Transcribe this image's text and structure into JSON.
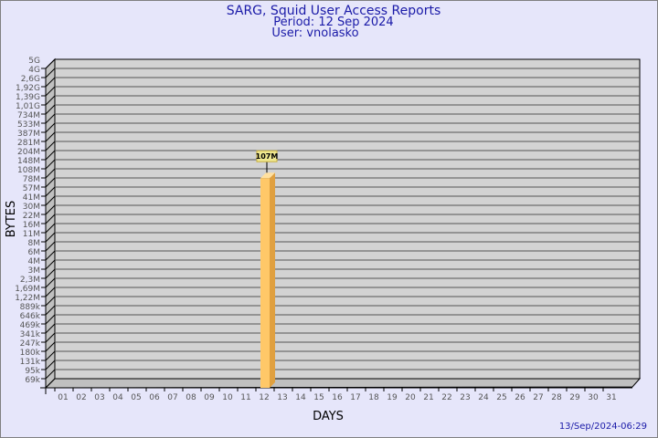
{
  "chart_data": {
    "type": "bar",
    "title": "SARG, Squid User Access Reports",
    "subtitle_period": "Period: 12 Sep 2024",
    "subtitle_user": "User: vnolasko",
    "xlabel": "DAYS",
    "ylabel": "BYTES",
    "y_scale": "log",
    "y_tick_labels": [
      "5G",
      "4G",
      "2,6G",
      "1,92G",
      "1,39G",
      "1,01G",
      "734M",
      "533M",
      "387M",
      "281M",
      "204M",
      "148M",
      "108M",
      "78M",
      "57M",
      "41M",
      "30M",
      "22M",
      "16M",
      "11M",
      "8M",
      "6M",
      "4M",
      "3M",
      "2,3M",
      "1,69M",
      "1,22M",
      "889k",
      "646k",
      "469k",
      "341k",
      "247k",
      "180k",
      "131k",
      "95k",
      "69k"
    ],
    "categories": [
      "01",
      "02",
      "03",
      "04",
      "05",
      "06",
      "07",
      "08",
      "09",
      "10",
      "11",
      "12",
      "13",
      "14",
      "15",
      "16",
      "17",
      "18",
      "19",
      "20",
      "21",
      "22",
      "23",
      "24",
      "25",
      "26",
      "27",
      "28",
      "29",
      "30",
      "31"
    ],
    "bars": [
      {
        "day": "12",
        "value_bytes": 107000000,
        "label": "107M"
      }
    ],
    "grid": true,
    "footer_timestamp": "13/Sep/2024-06:29",
    "colors": {
      "background": "#e6e6fa",
      "plot": "#d3d3d3",
      "bar_front": "#ffc868",
      "bar_side": "#e0a040",
      "bar_top": "#ffe0a0",
      "title": "#1a1aa8",
      "label_box": "#f0e890"
    }
  }
}
